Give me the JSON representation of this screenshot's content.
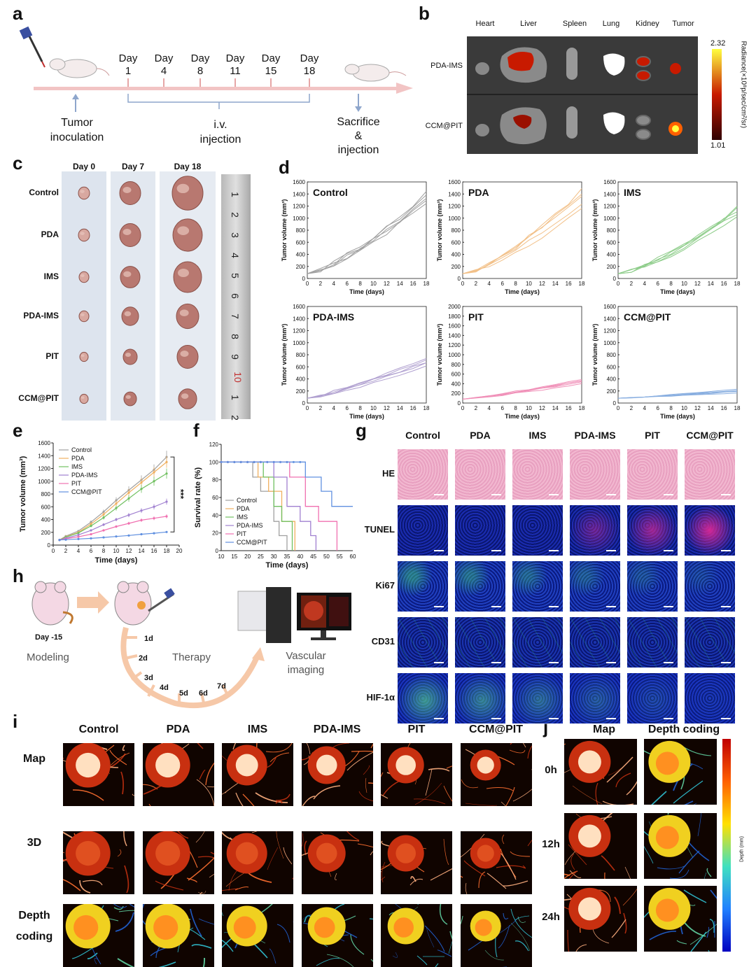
{
  "panels": {
    "a": "a",
    "b": "b",
    "c": "c",
    "d": "d",
    "e": "e",
    "f": "f",
    "g": "g",
    "h": "h",
    "i": "i",
    "j": "j"
  },
  "a": {
    "days": [
      {
        "t": "Day",
        "n": "1"
      },
      {
        "t": "Day",
        "n": "4"
      },
      {
        "t": "Day",
        "n": "8"
      },
      {
        "t": "Day",
        "n": "11"
      },
      {
        "t": "Day",
        "n": "15"
      },
      {
        "t": "Day",
        "n": "18"
      }
    ],
    "tumor_inoc": [
      "Tumor",
      "inoculation"
    ],
    "iv": [
      "i.v.",
      "injection"
    ],
    "sac": [
      "Sacrifice",
      "&",
      "injection"
    ]
  },
  "b": {
    "organs": [
      "Heart",
      "Liver",
      "Spleen",
      "Lung",
      "Kidney",
      "Tumor"
    ],
    "rows": [
      "PDA-IMS",
      "CCM@PIT"
    ],
    "scale_max": "2.32",
    "scale_min": "1.01",
    "scale_label": "Radiance(×10⁸p/sec/cm²/sr)",
    "colors": {
      "low": "#300000",
      "mid": "#c81a00",
      "high": "#ffff40"
    }
  },
  "c": {
    "days": [
      "Day 0",
      "Day 7",
      "Day 18"
    ],
    "groups": [
      "Control",
      "PDA",
      "IMS",
      "PDA-IMS",
      "PIT",
      "CCM@PIT"
    ],
    "ruler": [
      "1",
      "2",
      "3",
      "4",
      "5",
      "6",
      "7",
      "8",
      "9",
      "10",
      "1",
      "2"
    ]
  },
  "d": {
    "ylabel": "Tumor volume (mm³)",
    "xlabel": "Time (days)",
    "xticks": [
      "0",
      "2",
      "4",
      "6",
      "8",
      "10",
      "12",
      "14",
      "16",
      "18"
    ],
    "subplots": [
      {
        "name": "Control",
        "color": "#a0a0a0",
        "ymax": 1600,
        "end": [
          1250,
          1330,
          1380,
          1420,
          1300
        ]
      },
      {
        "name": "PDA",
        "color": "#f2c088",
        "ymax": 1600,
        "end": [
          1150,
          1250,
          1350,
          1450,
          1400
        ]
      },
      {
        "name": "IMS",
        "color": "#8ccc88",
        "ymax": 1600,
        "end": [
          1000,
          1080,
          1130,
          1180,
          1150
        ]
      },
      {
        "name": "PDA-IMS",
        "color": "#b0a0d0",
        "ymax": 1600,
        "end": [
          600,
          650,
          700,
          740,
          680
        ]
      },
      {
        "name": "PIT",
        "color": "#f090b8",
        "ymax": 2000,
        "end": [
          400,
          440,
          470,
          500,
          460
        ]
      },
      {
        "name": "CCM@PIT",
        "color": "#88aee0",
        "ymax": 1600,
        "end": [
          170,
          190,
          210,
          230,
          200
        ]
      }
    ],
    "yticks1600": [
      "0",
      "200",
      "400",
      "600",
      "800",
      "1000",
      "1200",
      "1400",
      "1600"
    ],
    "yticks2000": [
      "0",
      "200",
      "400",
      "600",
      "800",
      "1000",
      "1200",
      "1400",
      "1600",
      "1800",
      "2000"
    ]
  },
  "chart_data": [
    {
      "type": "line",
      "panel": "e",
      "xlabel": "Time (days)",
      "ylabel": "Tumor volume (mm³)",
      "xlim": [
        0,
        20
      ],
      "ylim": [
        0,
        1600
      ],
      "xticks": [
        "0",
        "2",
        "4",
        "6",
        "8",
        "10",
        "12",
        "14",
        "16",
        "18",
        "20"
      ],
      "yticks": [
        "0",
        "200",
        "400",
        "600",
        "800",
        "1000",
        "1200",
        "1400",
        "1600"
      ],
      "x": [
        1,
        2,
        4,
        6,
        8,
        10,
        12,
        14,
        16,
        18
      ],
      "series": [
        {
          "name": "Control",
          "color": "#a0a0a0",
          "values": [
            80,
            140,
            220,
            360,
            520,
            700,
            860,
            1020,
            1180,
            1380
          ]
        },
        {
          "name": "PDA",
          "color": "#f0b060",
          "values": [
            80,
            130,
            200,
            330,
            480,
            650,
            820,
            980,
            1140,
            1300
          ]
        },
        {
          "name": "IMS",
          "color": "#70c060",
          "values": [
            80,
            125,
            190,
            300,
            430,
            580,
            730,
            880,
            1000,
            1120
          ]
        },
        {
          "name": "PDA-IMS",
          "color": "#a080d0",
          "values": [
            80,
            110,
            160,
            230,
            320,
            400,
            470,
            540,
            600,
            680
          ]
        },
        {
          "name": "PIT",
          "color": "#f070b0",
          "values": [
            80,
            100,
            130,
            170,
            230,
            290,
            340,
            390,
            420,
            450
          ]
        },
        {
          "name": "CCM@PIT",
          "color": "#6090e0",
          "values": [
            80,
            85,
            95,
            105,
            120,
            135,
            150,
            170,
            185,
            205
          ]
        }
      ],
      "annotation": "***",
      "legend": "top-left"
    },
    {
      "type": "line",
      "panel": "f",
      "xlabel": "Time (days)",
      "ylabel": "Survival rate (%)",
      "xlim": [
        10,
        60
      ],
      "ylim": [
        0,
        120
      ],
      "xticks": [
        "10",
        "15",
        "20",
        "25",
        "30",
        "35",
        "40",
        "45",
        "50",
        "55",
        "60"
      ],
      "yticks": [
        "0",
        "20",
        "40",
        "60",
        "80",
        "100",
        "120"
      ],
      "series": [
        {
          "name": "Control",
          "color": "#a0a0a0",
          "steps": [
            [
              10,
              100
            ],
            [
              22,
              100
            ],
            [
              22,
              83
            ],
            [
              25,
              83
            ],
            [
              25,
              67
            ],
            [
              30,
              67
            ],
            [
              30,
              33
            ],
            [
              32,
              33
            ],
            [
              32,
              17
            ],
            [
              35,
              17
            ],
            [
              35,
              0
            ]
          ]
        },
        {
          "name": "PDA",
          "color": "#f0b060",
          "steps": [
            [
              10,
              100
            ],
            [
              24,
              100
            ],
            [
              24,
              83
            ],
            [
              28,
              83
            ],
            [
              28,
              67
            ],
            [
              33,
              67
            ],
            [
              33,
              33
            ],
            [
              38,
              33
            ],
            [
              38,
              0
            ]
          ]
        },
        {
          "name": "IMS",
          "color": "#70c060",
          "steps": [
            [
              10,
              100
            ],
            [
              26,
              100
            ],
            [
              26,
              83
            ],
            [
              30,
              83
            ],
            [
              30,
              50
            ],
            [
              33,
              50
            ],
            [
              33,
              33
            ],
            [
              37,
              33
            ],
            [
              37,
              0
            ]
          ]
        },
        {
          "name": "PDA-IMS",
          "color": "#a080d0",
          "steps": [
            [
              10,
              100
            ],
            [
              30,
              100
            ],
            [
              30,
              83
            ],
            [
              35,
              83
            ],
            [
              35,
              50
            ],
            [
              40,
              50
            ],
            [
              40,
              33
            ],
            [
              44,
              33
            ],
            [
              44,
              17
            ],
            [
              46,
              17
            ],
            [
              46,
              0
            ]
          ]
        },
        {
          "name": "PIT",
          "color": "#f070b0",
          "steps": [
            [
              10,
              100
            ],
            [
              36,
              100
            ],
            [
              36,
              83
            ],
            [
              42,
              83
            ],
            [
              42,
              50
            ],
            [
              47,
              50
            ],
            [
              47,
              33
            ],
            [
              54,
              33
            ],
            [
              54,
              0
            ]
          ]
        },
        {
          "name": "CCM@PIT",
          "color": "#6090e0",
          "steps": [
            [
              10,
              100
            ],
            [
              42,
              100
            ],
            [
              42,
              83
            ],
            [
              48,
              83
            ],
            [
              48,
              67
            ],
            [
              52,
              67
            ],
            [
              52,
              50
            ],
            [
              60,
              50
            ]
          ]
        }
      ],
      "legend": "bottom-left"
    }
  ],
  "g": {
    "cols": [
      "Control",
      "PDA",
      "IMS",
      "PDA-IMS",
      "PIT",
      "CCM@PIT"
    ],
    "rows": [
      "HE",
      "TUNEL",
      "Ki67",
      "CD31",
      "HIF-1α"
    ]
  },
  "h": {
    "day": "Day -15",
    "modeling": "Modeling",
    "therapy": "Therapy",
    "vascular": [
      "Vascular",
      "imaging"
    ],
    "days": [
      "1d",
      "2d",
      "3d",
      "4d",
      "5d",
      "6d",
      "7d"
    ]
  },
  "i": {
    "cols": [
      "Control",
      "PDA",
      "IMS",
      "PDA-IMS",
      "PIT",
      "CCM@PIT"
    ],
    "rows": [
      [
        "Map"
      ],
      [
        "3D"
      ],
      [
        "Depth",
        "coding"
      ]
    ]
  },
  "j": {
    "cols": [
      "Map",
      "Depth coding"
    ],
    "rows": [
      "0h",
      "12h",
      "24h"
    ],
    "bar_label": "Depth (mm)"
  }
}
